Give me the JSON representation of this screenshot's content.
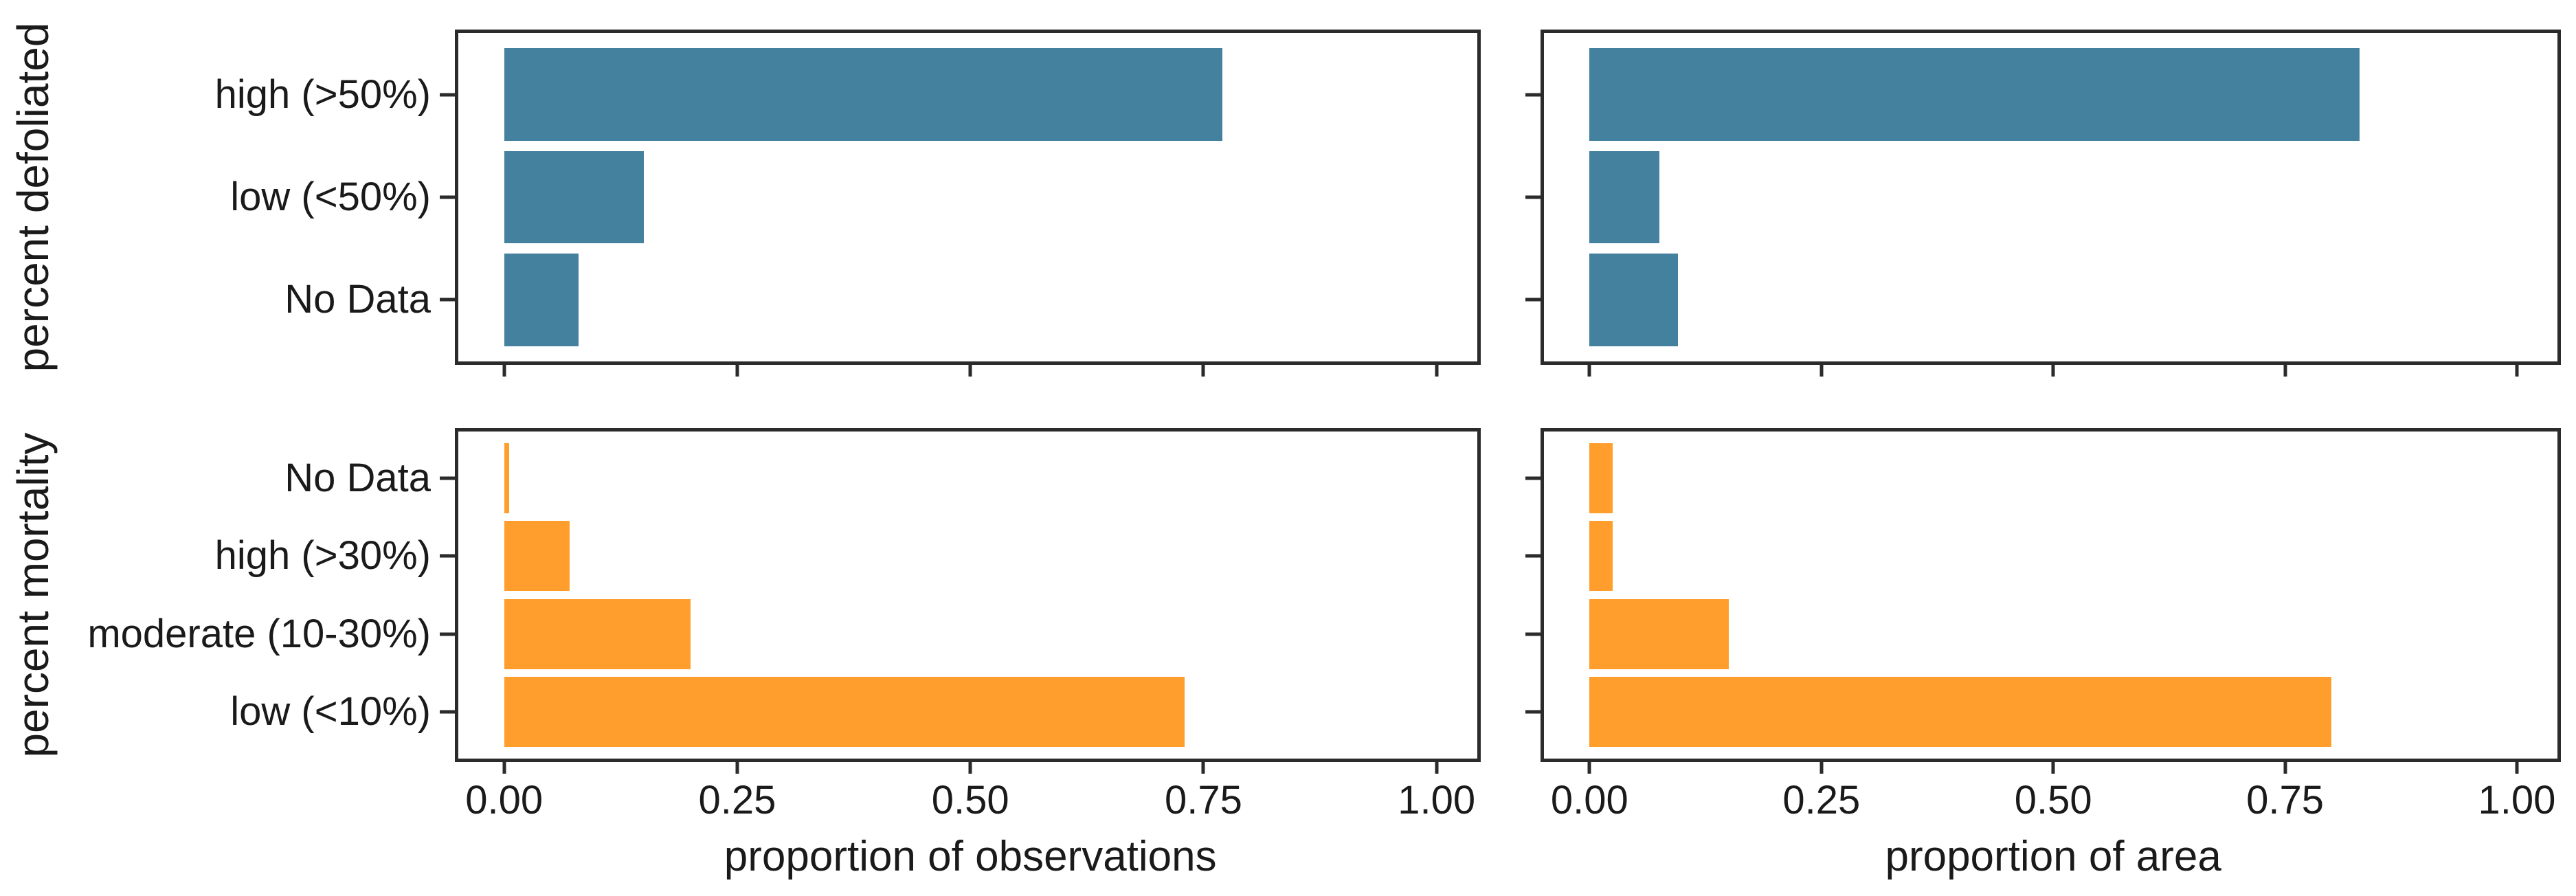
{
  "figure": {
    "background": "#ffffff",
    "border_color": "#2b2b2b",
    "text_color": "#1a1a1a",
    "defoliation_color": "#44819F",
    "mortality_color": "#FF9E2D"
  },
  "axes": {
    "row_titles": [
      "percent defoliated",
      "percent mortality"
    ],
    "col_titles": [
      "proportion of observations",
      "proportion of area"
    ],
    "x_tick_labels": [
      "0.00",
      "0.25",
      "0.50",
      "0.75",
      "1.00"
    ],
    "x_tick_values": [
      0,
      0.25,
      0.5,
      0.75,
      1.0
    ],
    "xlim": [
      0,
      1
    ],
    "grid": "off",
    "legend": "none"
  },
  "chart_data": [
    {
      "type": "bar",
      "orientation": "horizontal",
      "panel": "top-left",
      "row_title": "percent defoliated",
      "xlabel": "proportion of observations",
      "categories": [
        "high (>50%)",
        "low (<50%)",
        "No Data"
      ],
      "values": [
        0.77,
        0.15,
        0.08
      ],
      "color": "#44819F",
      "xlim": [
        0,
        1
      ],
      "show_category_labels": true,
      "show_x_tick_labels": false,
      "show_x_axis_title": false
    },
    {
      "type": "bar",
      "orientation": "horizontal",
      "panel": "top-right",
      "row_title": "percent defoliated",
      "xlabel": "proportion of area",
      "categories": [
        "high (>50%)",
        "low (<50%)",
        "No Data"
      ],
      "values": [
        0.83,
        0.075,
        0.095
      ],
      "color": "#44819F",
      "xlim": [
        0,
        1
      ],
      "show_category_labels": false,
      "show_x_tick_labels": false,
      "show_x_axis_title": false
    },
    {
      "type": "bar",
      "orientation": "horizontal",
      "panel": "bottom-left",
      "row_title": "percent mortality",
      "xlabel": "proportion of observations",
      "categories": [
        "No Data",
        "high (>30%)",
        "moderate (10-30%)",
        "low (<10%)"
      ],
      "values": [
        0.005,
        0.07,
        0.2,
        0.73
      ],
      "color": "#FF9E2D",
      "xlim": [
        0,
        1
      ],
      "show_category_labels": true,
      "show_x_tick_labels": true,
      "show_x_axis_title": true
    },
    {
      "type": "bar",
      "orientation": "horizontal",
      "panel": "bottom-right",
      "row_title": "percent mortality",
      "xlabel": "proportion of area",
      "categories": [
        "No Data",
        "high (>30%)",
        "moderate (10-30%)",
        "low (<10%)"
      ],
      "values": [
        0.025,
        0.025,
        0.15,
        0.8
      ],
      "color": "#FF9E2D",
      "xlim": [
        0,
        1
      ],
      "show_category_labels": false,
      "show_x_tick_labels": true,
      "show_x_axis_title": true
    }
  ]
}
